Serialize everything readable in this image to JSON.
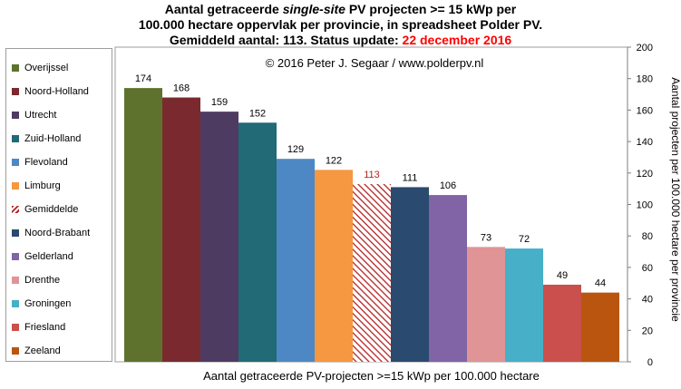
{
  "title": {
    "line1_a": "Aantal getraceerde ",
    "line1_em": "single-site",
    "line1_b": " PV projecten >= 15 kWp per",
    "line2": "100.000 hectare oppervlak per provincie, in spreadsheet Polder PV.",
    "line3_a": "Gemiddeld aantal: 113. Status update: ",
    "line3_date": "22 december 2016"
  },
  "colors": {
    "date_red": "#ff0000",
    "average_hatch": "#b32424"
  },
  "chart_data": {
    "type": "bar",
    "title": "Aantal getraceerde single-site PV projecten >= 15 kWp per 100.000 hectare oppervlak per provincie, in spreadsheet Polder PV. Gemiddeld aantal: 113. Status update: 22 december 2016",
    "annotation": "© 2016 Peter J. Segaar / www.polderpv.nl",
    "xlabel": "Aantal getraceerde PV-projecten >=15 kWp per 100.000 hectare",
    "ylabel": "Aantal projecten per 100.000 hectare per provincie",
    "ylim": [
      0,
      200
    ],
    "yticks": [
      0,
      20,
      40,
      60,
      80,
      100,
      120,
      140,
      160,
      180,
      200
    ],
    "y_axis_side": "right",
    "grid": false,
    "legend_position": "left",
    "series": [
      {
        "name": "Overijssel",
        "value": 174,
        "color": "#5e722e"
      },
      {
        "name": "Noord-Holland",
        "value": 168,
        "color": "#7a2a2e"
      },
      {
        "name": "Utrecht",
        "value": 159,
        "color": "#4e3b62"
      },
      {
        "name": "Zuid-Holland",
        "value": 152,
        "color": "#216a76"
      },
      {
        "name": "Flevoland",
        "value": 129,
        "color": "#4d88c4"
      },
      {
        "name": "Limburg",
        "value": 122,
        "color": "#f69741"
      },
      {
        "name": "Gemiddelde",
        "value": 113,
        "color": "#b32424",
        "pattern": "hatch"
      },
      {
        "name": "Noord-Brabant",
        "value": 111,
        "color": "#2b4a6f"
      },
      {
        "name": "Gelderland",
        "value": 106,
        "color": "#8064a5"
      },
      {
        "name": "Drenthe",
        "value": 73,
        "color": "#e09495"
      },
      {
        "name": "Groningen",
        "value": 72,
        "color": "#47afc8"
      },
      {
        "name": "Friesland",
        "value": 49,
        "color": "#c9504c"
      },
      {
        "name": "Zeeland",
        "value": 44,
        "color": "#b9550f"
      }
    ]
  }
}
